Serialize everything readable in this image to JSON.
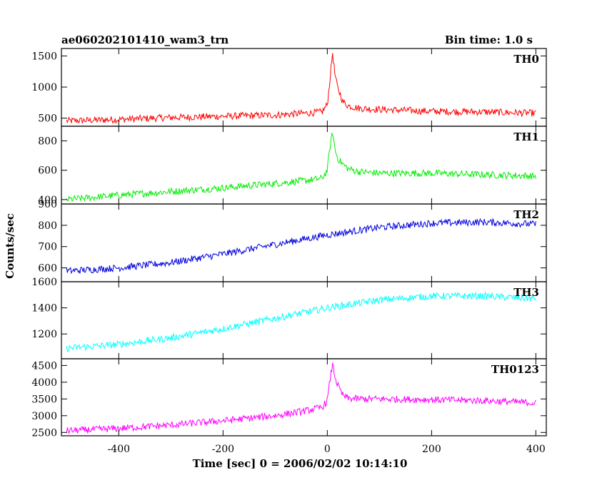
{
  "header": {
    "title": "ae060202101410_wam3_trn",
    "bin_time": "Bin time: 1.0 s"
  },
  "chart_data": {
    "type": "line",
    "title": "ae060202101410_wam3_trn",
    "xlabel": "Time [sec] 0 = 2006/02/02 10:14:10",
    "ylabel": "Counts/sec",
    "xlim": [
      -510,
      420
    ],
    "x_ticks": [
      -400,
      -200,
      0,
      200,
      400
    ],
    "grid": false,
    "legend": "none",
    "panels": [
      {
        "name": "TH0",
        "color": "#ff0000",
        "ylim": [
          370,
          1620
        ],
        "y_ticks": [
          500,
          1000,
          1500
        ],
        "x": [
          -500,
          -400,
          -300,
          -200,
          -100,
          -40,
          -10,
          0,
          5,
          10,
          15,
          20,
          25,
          30,
          40,
          60,
          100,
          200,
          300,
          400
        ],
        "values": [
          455,
          480,
          510,
          530,
          550,
          580,
          600,
          720,
          1120,
          1550,
          1180,
          980,
          880,
          760,
          700,
          660,
          640,
          610,
          600,
          580
        ]
      },
      {
        "name": "TH1",
        "color": "#00ee00",
        "ylim": [
          370,
          900
        ],
        "y_ticks": [
          400,
          600,
          800
        ],
        "x": [
          -500,
          -400,
          -300,
          -200,
          -100,
          -40,
          -10,
          0,
          5,
          10,
          15,
          20,
          30,
          40,
          60,
          100,
          200,
          300,
          400
        ],
        "values": [
          400,
          430,
          455,
          480,
          510,
          530,
          545,
          600,
          760,
          860,
          740,
          680,
          640,
          610,
          590,
          580,
          580,
          570,
          560
        ]
      },
      {
        "name": "TH2",
        "color": "#0000dd",
        "ylim": [
          535,
          900
        ],
        "y_ticks": [
          600,
          700,
          800,
          900
        ],
        "x": [
          -500,
          -400,
          -300,
          -200,
          -100,
          0,
          100,
          200,
          300,
          400
        ],
        "values": [
          585,
          600,
          625,
          665,
          710,
          755,
          790,
          810,
          815,
          805
        ]
      },
      {
        "name": "TH3",
        "color": "#00ffff",
        "ylim": [
          1010,
          1600
        ],
        "y_ticks": [
          1200,
          1400,
          1600
        ],
        "x": [
          -500,
          -400,
          -300,
          -200,
          -100,
          0,
          100,
          200,
          300,
          400
        ],
        "values": [
          1090,
          1120,
          1170,
          1240,
          1320,
          1400,
          1460,
          1490,
          1490,
          1470
        ]
      },
      {
        "name": "TH0123",
        "color": "#ff00ff",
        "ylim": [
          2400,
          4700
        ],
        "y_ticks": [
          2500,
          3000,
          3500,
          4000,
          4500
        ],
        "x": [
          -500,
          -400,
          -300,
          -200,
          -100,
          -40,
          -10,
          0,
          5,
          10,
          15,
          20,
          25,
          30,
          40,
          60,
          100,
          200,
          300,
          400
        ],
        "values": [
          2550,
          2620,
          2720,
          2850,
          3000,
          3150,
          3250,
          3450,
          4050,
          4550,
          4150,
          3900,
          3750,
          3600,
          3520,
          3500,
          3500,
          3480,
          3450,
          3380
        ]
      }
    ]
  }
}
